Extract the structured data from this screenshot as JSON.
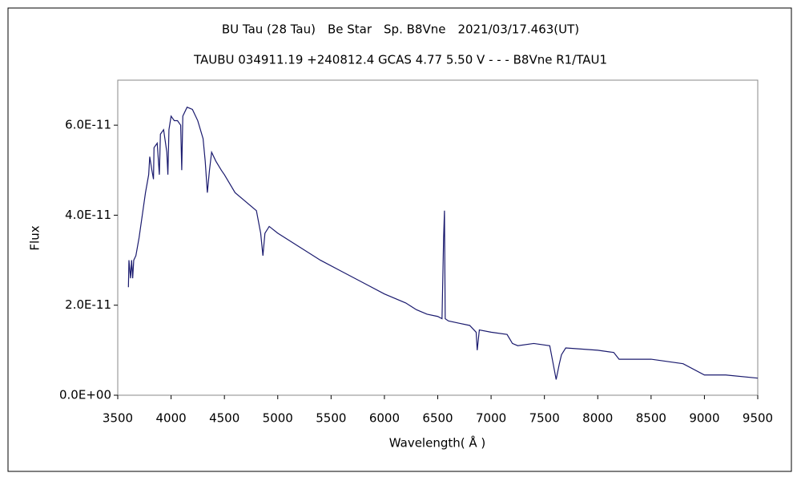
{
  "chart_data": {
    "type": "line",
    "title": "BU Tau (28 Tau)　Be Star　Sp. B8Vne　2021/03/17.463(UT)",
    "subtitle": "TAUBU 034911.19 +240812.4 GCAS 4.77 5.50 V - - - B8Vne R1/TAU1",
    "x_label": "Wavelength( Å )",
    "y_label": "Flux",
    "xlim": [
      3500,
      9500
    ],
    "xticks": [
      3500,
      4000,
      4500,
      5000,
      5500,
      6000,
      6500,
      7000,
      7500,
      8000,
      8500,
      9000,
      9500
    ],
    "ylim": [
      0,
      7e-11
    ],
    "yticks": [
      {
        "value": 0,
        "label": "0.0E+00"
      },
      {
        "value": 2e-11,
        "label": "2.0E-11"
      },
      {
        "value": 4e-11,
        "label": "4.0E-11"
      },
      {
        "value": 6e-11,
        "label": "6.0E-11"
      }
    ],
    "grid": false,
    "x": [
      3600,
      3605,
      3620,
      3630,
      3640,
      3650,
      3670,
      3700,
      3730,
      3760,
      3790,
      3800,
      3820,
      3835,
      3840,
      3870,
      3890,
      3900,
      3930,
      3960,
      3970,
      3980,
      4000,
      4030,
      4060,
      4090,
      4100,
      4110,
      4150,
      4200,
      4250,
      4300,
      4320,
      4340,
      4360,
      4380,
      4420,
      4471,
      4500,
      4600,
      4700,
      4800,
      4840,
      4861,
      4880,
      4920,
      5000,
      5200,
      5400,
      5600,
      5800,
      6000,
      6200,
      6300,
      6400,
      6500,
      6540,
      6555,
      6563,
      6570,
      6600,
      6700,
      6800,
      6860,
      6870,
      6890,
      7000,
      7150,
      7200,
      7250,
      7400,
      7550,
      7590,
      7610,
      7640,
      7660,
      7700,
      8000,
      8150,
      8200,
      8500,
      8800,
      9000,
      9200,
      9500
    ],
    "series": [
      {
        "name": "BU Tau",
        "color": "#1a1a6e",
        "values": [
          2.4e-11,
          3e-11,
          2.6e-11,
          3e-11,
          2.6e-11,
          3e-11,
          3.1e-11,
          3.5e-11,
          4e-11,
          4.5e-11,
          4.9e-11,
          5.3e-11,
          5e-11,
          4.8e-11,
          5.5e-11,
          5.6e-11,
          4.9e-11,
          5.8e-11,
          5.9e-11,
          5.4e-11,
          4.9e-11,
          5.9e-11,
          6.2e-11,
          6.1e-11,
          6.1e-11,
          6e-11,
          5e-11,
          6.2e-11,
          6.4e-11,
          6.35e-11,
          6.1e-11,
          5.7e-11,
          5.2e-11,
          4.5e-11,
          5e-11,
          5.4e-11,
          5.2e-11,
          5e-11,
          4.9e-11,
          4.5e-11,
          4.3e-11,
          4.1e-11,
          3.6e-11,
          3.1e-11,
          3.6e-11,
          3.75e-11,
          3.6e-11,
          3.3e-11,
          3e-11,
          2.75e-11,
          2.5e-11,
          2.25e-11,
          2.05e-11,
          1.9e-11,
          1.8e-11,
          1.75e-11,
          1.7e-11,
          3.5e-11,
          4.1e-11,
          1.7e-11,
          1.65e-11,
          1.6e-11,
          1.55e-11,
          1.4e-11,
          1e-11,
          1.45e-11,
          1.4e-11,
          1.35e-11,
          1.15e-11,
          1.1e-11,
          1.15e-11,
          1.1e-11,
          6e-12,
          3.5e-12,
          7e-12,
          9e-12,
          1.05e-11,
          1e-11,
          9.5e-12,
          8e-12,
          8e-12,
          7e-12,
          4.5e-12,
          4.5e-12,
          3.8e-12
        ]
      }
    ]
  }
}
